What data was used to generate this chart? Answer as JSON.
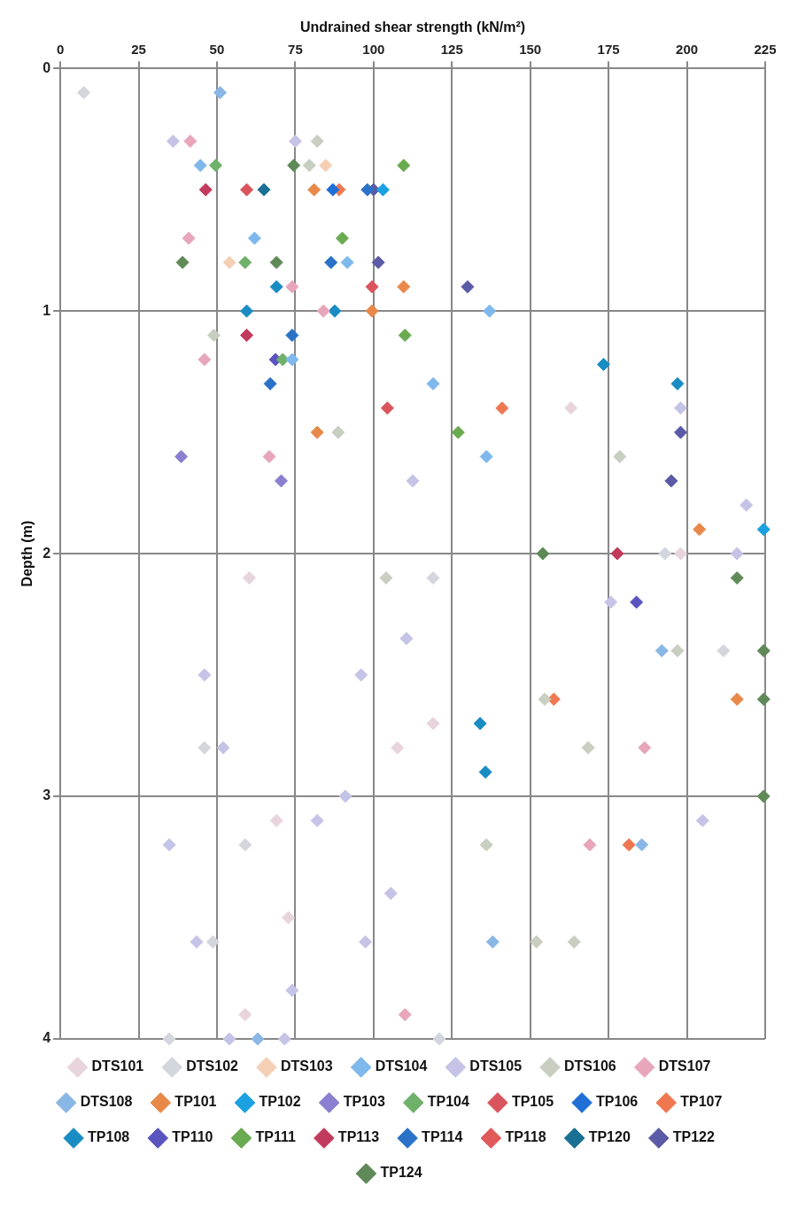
{
  "chart_data": {
    "type": "scatter",
    "xlabel": "Undrained shear strength (kN/m²)",
    "ylabel": "Depth (m)",
    "xlim": [
      0,
      225
    ],
    "xticks": [
      0,
      25,
      50,
      75,
      100,
      125,
      150,
      175,
      200,
      225
    ],
    "ylim": [
      4,
      0
    ],
    "yticks": [
      0,
      1,
      2,
      3,
      4
    ],
    "grid": true,
    "legend": "bottom",
    "marker": "diamond",
    "series": [
      {
        "name": "DTS101",
        "color": "#e8d4dc",
        "x": [
          163,
          198,
          60.3,
          119,
          107.6,
          69,
          72.8,
          59
        ],
        "values": [
          1.4,
          2.0,
          2.1,
          2.7,
          2.8,
          3.1,
          3.5,
          3.9
        ]
      },
      {
        "name": "DTS102",
        "color": "#d4d6de",
        "x": [
          7.5,
          193,
          119,
          211.7,
          46,
          59,
          48.7,
          34.8,
          121
        ],
        "values": [
          0.1,
          2.0,
          2.1,
          2.4,
          2.8,
          3.2,
          3.6,
          4.0,
          4.0
        ]
      },
      {
        "name": "DTS103",
        "color": "#f5cfb4",
        "x": [
          84.7,
          54
        ],
        "values": [
          0.4,
          0.8
        ]
      },
      {
        "name": "DTS104",
        "color": "#7fb8ec",
        "x": [
          44.7,
          62,
          91.6,
          137,
          74,
          119,
          136
        ],
        "values": [
          0.4,
          0.7,
          0.8,
          1.0,
          1.2,
          1.3,
          1.6
        ]
      },
      {
        "name": "DTS105",
        "color": "#c5c3e6",
        "x": [
          36,
          75,
          112.5,
          198,
          219,
          216,
          175.7,
          110.5,
          46,
          96,
          52,
          91,
          82,
          205,
          34.8,
          105.5,
          43.5,
          97.4,
          74,
          54,
          71.6
        ],
        "values": [
          0.3,
          0.3,
          1.7,
          1.4,
          1.8,
          2.0,
          2.2,
          2.35,
          2.5,
          2.5,
          2.8,
          3.0,
          3.1,
          3.1,
          3.2,
          3.4,
          3.6,
          3.6,
          3.8,
          4.0,
          4.0
        ]
      },
      {
        "name": "DTS106",
        "color": "#c8cec0",
        "x": [
          82,
          79.5,
          49,
          88.7,
          178.6,
          104,
          197,
          154.6,
          168.5,
          136,
          152,
          164
        ],
        "values": [
          0.3,
          0.4,
          1.1,
          1.5,
          1.6,
          2.1,
          2.4,
          2.6,
          2.8,
          3.2,
          3.6,
          3.6
        ]
      },
      {
        "name": "DTS107",
        "color": "#e8a6bb",
        "x": [
          41.5,
          41,
          74,
          84,
          46,
          66.7,
          186.5,
          169,
          110
        ],
        "values": [
          0.3,
          0.7,
          0.9,
          1.0,
          1.2,
          1.6,
          2.8,
          3.2,
          3.9
        ]
      },
      {
        "name": "DTS108",
        "color": "#8ab8e6",
        "x": [
          51,
          192,
          185.6,
          138,
          63
        ],
        "values": [
          0.1,
          2.4,
          3.2,
          3.6,
          4.0
        ]
      },
      {
        "name": "TP101",
        "color": "#e8894a",
        "x": [
          81,
          109.6,
          99.5,
          82,
          204,
          216
        ],
        "values": [
          0.5,
          0.9,
          1.0,
          1.5,
          1.9,
          2.6
        ]
      },
      {
        "name": "TP102",
        "color": "#1ba1e2",
        "x": [
          103,
          224.5
        ],
        "values": [
          0.5,
          1.9
        ]
      },
      {
        "name": "TP103",
        "color": "#8a7fd0",
        "x": [
          38.6,
          70.5
        ],
        "values": [
          1.6,
          1.7
        ]
      },
      {
        "name": "TP104",
        "color": "#6fb06a",
        "x": [
          49.6,
          59,
          71
        ],
        "values": [
          0.4,
          0.8,
          1.2
        ]
      },
      {
        "name": "TP105",
        "color": "#d9545c",
        "x": [
          59.5,
          99.5,
          104.4
        ],
        "values": [
          0.5,
          0.9,
          1.4
        ]
      },
      {
        "name": "TP106",
        "color": "#1f6fd6",
        "x": [
          87
        ],
        "values": [
          0.5
        ]
      },
      {
        "name": "TP107",
        "color": "#f07850",
        "x": [
          89,
          141,
          157.5,
          181.5
        ],
        "values": [
          0.5,
          1.4,
          2.6,
          3.2
        ]
      },
      {
        "name": "TP108",
        "color": "#1a8cc4",
        "x": [
          69,
          87.6,
          59.5,
          173.4,
          197,
          134,
          135.7
        ],
        "values": [
          0.9,
          1.0,
          1.0,
          1.22,
          1.3,
          2.7,
          2.9
        ]
      },
      {
        "name": "TP110",
        "color": "#5a54c0",
        "x": [
          68.7,
          183.9
        ],
        "values": [
          1.2,
          2.2
        ]
      },
      {
        "name": "TP111",
        "color": "#6aaa50",
        "x": [
          109.6,
          90,
          110,
          127
        ],
        "values": [
          0.4,
          0.7,
          1.1,
          1.5
        ]
      },
      {
        "name": "TP113",
        "color": "#c23a5c",
        "x": [
          46.4,
          59.5,
          177.8
        ],
        "values": [
          0.5,
          1.1,
          2.0
        ]
      },
      {
        "name": "TP114",
        "color": "#2a72c8",
        "x": [
          98,
          86.4,
          74,
          67
        ],
        "values": [
          0.5,
          0.8,
          1.1,
          1.3
        ]
      },
      {
        "name": "TP118",
        "color": "#e05a5a"
      },
      {
        "name": "TP120",
        "color": "#1a6f94",
        "x": [
          65
        ],
        "values": [
          0.5
        ]
      },
      {
        "name": "TP122",
        "color": "#5a5aa6",
        "x": [
          100,
          101.5,
          130,
          198,
          195
        ],
        "values": [
          0.5,
          0.8,
          0.9,
          1.5,
          1.7
        ]
      },
      {
        "name": "TP124",
        "color": "#5f8a58",
        "x": [
          74.5,
          39,
          69,
          154,
          216,
          224.5,
          224.5,
          224.5
        ],
        "values": [
          0.4,
          0.8,
          0.8,
          2.0,
          2.1,
          2.4,
          2.6,
          3.0
        ]
      }
    ]
  }
}
